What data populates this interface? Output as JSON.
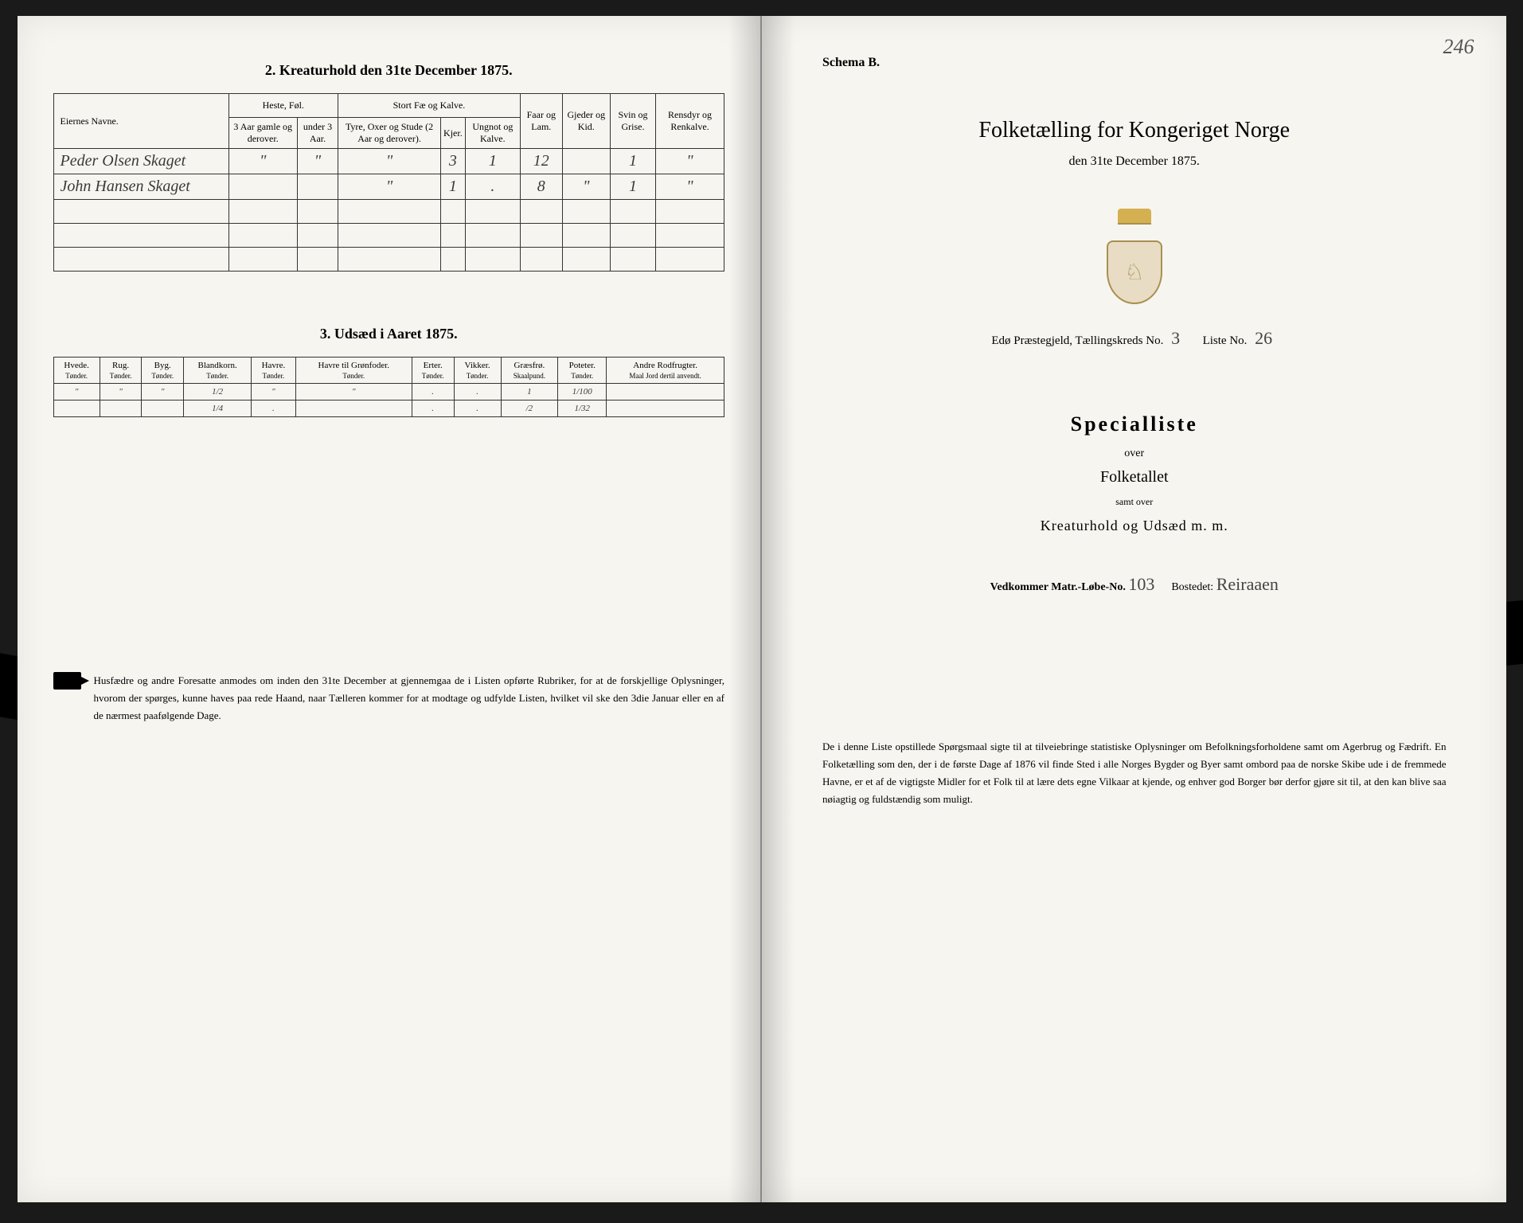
{
  "left": {
    "heading2": "2.  Kreaturhold den 31te December 1875.",
    "table2": {
      "col_name": "Eiernes Navne.",
      "grp1": "Heste, Føl.",
      "grp2": "Stort Fæ og Kalve.",
      "c1": "3 Aar gamle og derover.",
      "c2": "under 3 Aar.",
      "c3": "Tyre, Oxer og Stude (2 Aar og derover).",
      "c4": "Kjer.",
      "c5": "Ungnot og Kalve.",
      "c6": "Faar og Lam.",
      "c7": "Gjeder og Kid.",
      "c8": "Svin og Grise.",
      "c9": "Rensdyr og Renkalve.",
      "rows": [
        {
          "name": "Peder Olsen Skaget",
          "v": [
            "\"",
            "\"",
            "\"",
            "3",
            "1",
            "12",
            "",
            "1",
            "\""
          ]
        },
        {
          "name": "John Hansen Skaget",
          "v": [
            "",
            "",
            "\"",
            "1",
            ".",
            "8",
            "\"",
            "1",
            "\""
          ]
        }
      ]
    },
    "heading3": "3.  Udsæd i Aaret 1875.",
    "table3": {
      "cols": [
        "Hvede.",
        "Rug.",
        "Byg.",
        "Blandkorn.",
        "Havre.",
        "Havre til Grønfoder.",
        "Erter.",
        "Vikker.",
        "Græsfrø.",
        "Poteter.",
        "Andre Rodfrugter."
      ],
      "units": [
        "Tønder.",
        "Tønder.",
        "Tønder.",
        "Tønder.",
        "Tønder.",
        "Tønder.",
        "Tønder.",
        "Tønder.",
        "Skaalpund.",
        "Tønder.",
        "Maal Jord dertil anvendt."
      ],
      "rows": [
        [
          "\"",
          "\"",
          "\"",
          "1/2",
          "\"",
          "\"",
          ".",
          ".",
          "1",
          "1/100",
          ""
        ],
        [
          "",
          "",
          "",
          "1/4",
          ".",
          "",
          ".",
          ".",
          "/2",
          "1/32",
          ""
        ]
      ]
    },
    "footnote": "Husfædre og andre Foresatte anmodes om inden den 31te December at gjennemgaa de i Listen opførte Rubriker, for at de forskjellige Oplysninger, hvorom der spørges, kunne haves paa rede Haand, naar Tælleren kommer for at modtage og udfylde Listen, hvilket vil ske den 3die Januar eller en af de nærmest paafølgende Dage."
  },
  "right": {
    "pageno": "246",
    "schema": "Schema B.",
    "title": "Folketælling for Kongeriget Norge",
    "subtitle": "den 31te December 1875.",
    "parish_label": "Edø Præstegjeld, Tællingskreds No.",
    "parish_no": "3",
    "liste_label": "Liste No.",
    "liste_no": "26",
    "special": "Specialliste",
    "over": "over",
    "folket": "Folketallet",
    "samt": "samt over",
    "kreatur": "Kreaturhold og Udsæd m. m.",
    "matr_label": "Vedkommer Matr.-Løbe-No.",
    "matr_no": "103",
    "bosted_label": "Bostedet:",
    "bosted": "Reiraaen",
    "note": "De i denne Liste opstillede Spørgsmaal sigte til at tilveiebringe statistiske Oplysninger om Befolkningsforholdene samt om Agerbrug og Fædrift.  En Folketælling som den, der i de første Dage af 1876 vil finde Sted i alle Norges Bygder og Byer samt ombord paa de norske Skibe ude i de fremmede Havne, er et af de vigtigste Midler for et Folk til at lære dets egne Vilkaar at kjende, og enhver god Borger bør derfor gjøre sit til, at den kan blive saa nøiagtig og fuldstændig som muligt."
  }
}
